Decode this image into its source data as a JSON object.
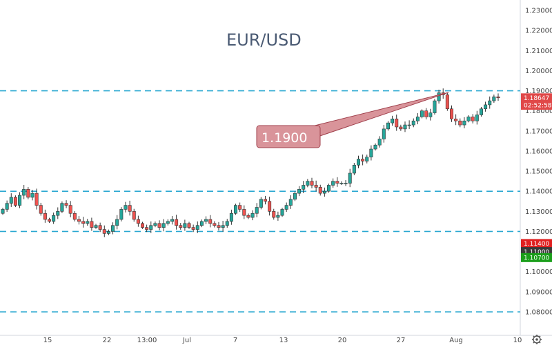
{
  "chart_data": {
    "type": "candlestick",
    "title": "EUR/USD",
    "ylim": [
      1.0775,
      1.2355
    ],
    "y_ticks": [
      "1.23000",
      "1.22000",
      "1.21000",
      "1.20000",
      "1.19000",
      "1.18000",
      "1.17000",
      "1.16000",
      "1.15000",
      "1.14000",
      "1.13000",
      "1.12000",
      "1.11000",
      "1.10000",
      "1.09000",
      "1.08000"
    ],
    "x_ticks": [
      "15",
      "22",
      "13:00",
      "Jul",
      "7",
      "13",
      "20",
      "27",
      "Aug",
      "10"
    ],
    "horizontal_levels": [
      1.19,
      1.14,
      1.12,
      1.08
    ],
    "annotation": {
      "label": "1.1900",
      "target_y": 1.19
    },
    "price_tags": [
      {
        "text": "1.18647",
        "y": 1.18647,
        "color": "#e04848"
      },
      {
        "text": "02:52:58",
        "y": 1.1828,
        "color": "#e04848"
      },
      {
        "text": "1.11400",
        "y": 1.114,
        "color": "#e02020"
      },
      {
        "text": "1.11000",
        "y": 1.11,
        "color": "#3a3a3a"
      },
      {
        "text": "1.10700",
        "y": 1.107,
        "color": "#1a9e1a"
      }
    ],
    "close_series": [
      1.131,
      1.134,
      1.137,
      1.133,
      1.138,
      1.141,
      1.137,
      1.139,
      1.133,
      1.129,
      1.126,
      1.125,
      1.128,
      1.13,
      1.134,
      1.133,
      1.129,
      1.126,
      1.125,
      1.124,
      1.125,
      1.122,
      1.123,
      1.121,
      1.119,
      1.12,
      1.123,
      1.126,
      1.131,
      1.133,
      1.13,
      1.126,
      1.124,
      1.122,
      1.121,
      1.123,
      1.124,
      1.122,
      1.124,
      1.125,
      1.126,
      1.123,
      1.122,
      1.124,
      1.122,
      1.121,
      1.123,
      1.125,
      1.126,
      1.124,
      1.123,
      1.122,
      1.123,
      1.125,
      1.129,
      1.133,
      1.131,
      1.128,
      1.127,
      1.129,
      1.132,
      1.136,
      1.135,
      1.13,
      1.127,
      1.128,
      1.131,
      1.133,
      1.136,
      1.139,
      1.141,
      1.143,
      1.145,
      1.143,
      1.142,
      1.139,
      1.14,
      1.143,
      1.145,
      1.144,
      1.144,
      1.144,
      1.149,
      1.153,
      1.156,
      1.155,
      1.157,
      1.161,
      1.163,
      1.166,
      1.171,
      1.174,
      1.176,
      1.172,
      1.171,
      1.173,
      1.173,
      1.175,
      1.177,
      1.18,
      1.177,
      1.179,
      1.185,
      1.189,
      1.188,
      1.181,
      1.176,
      1.175,
      1.173,
      1.175,
      1.177,
      1.175,
      1.178,
      1.181,
      1.183,
      1.185,
      1.187,
      1.1865
    ]
  },
  "colors": {
    "up": "#26a69a",
    "down": "#ef5350",
    "level_line": "#2aa8d1",
    "annotation_fill": "#d9949a",
    "annotation_stroke": "#a0404c",
    "title": "#4a5a73"
  },
  "icons": {
    "settings": "gear-icon"
  }
}
